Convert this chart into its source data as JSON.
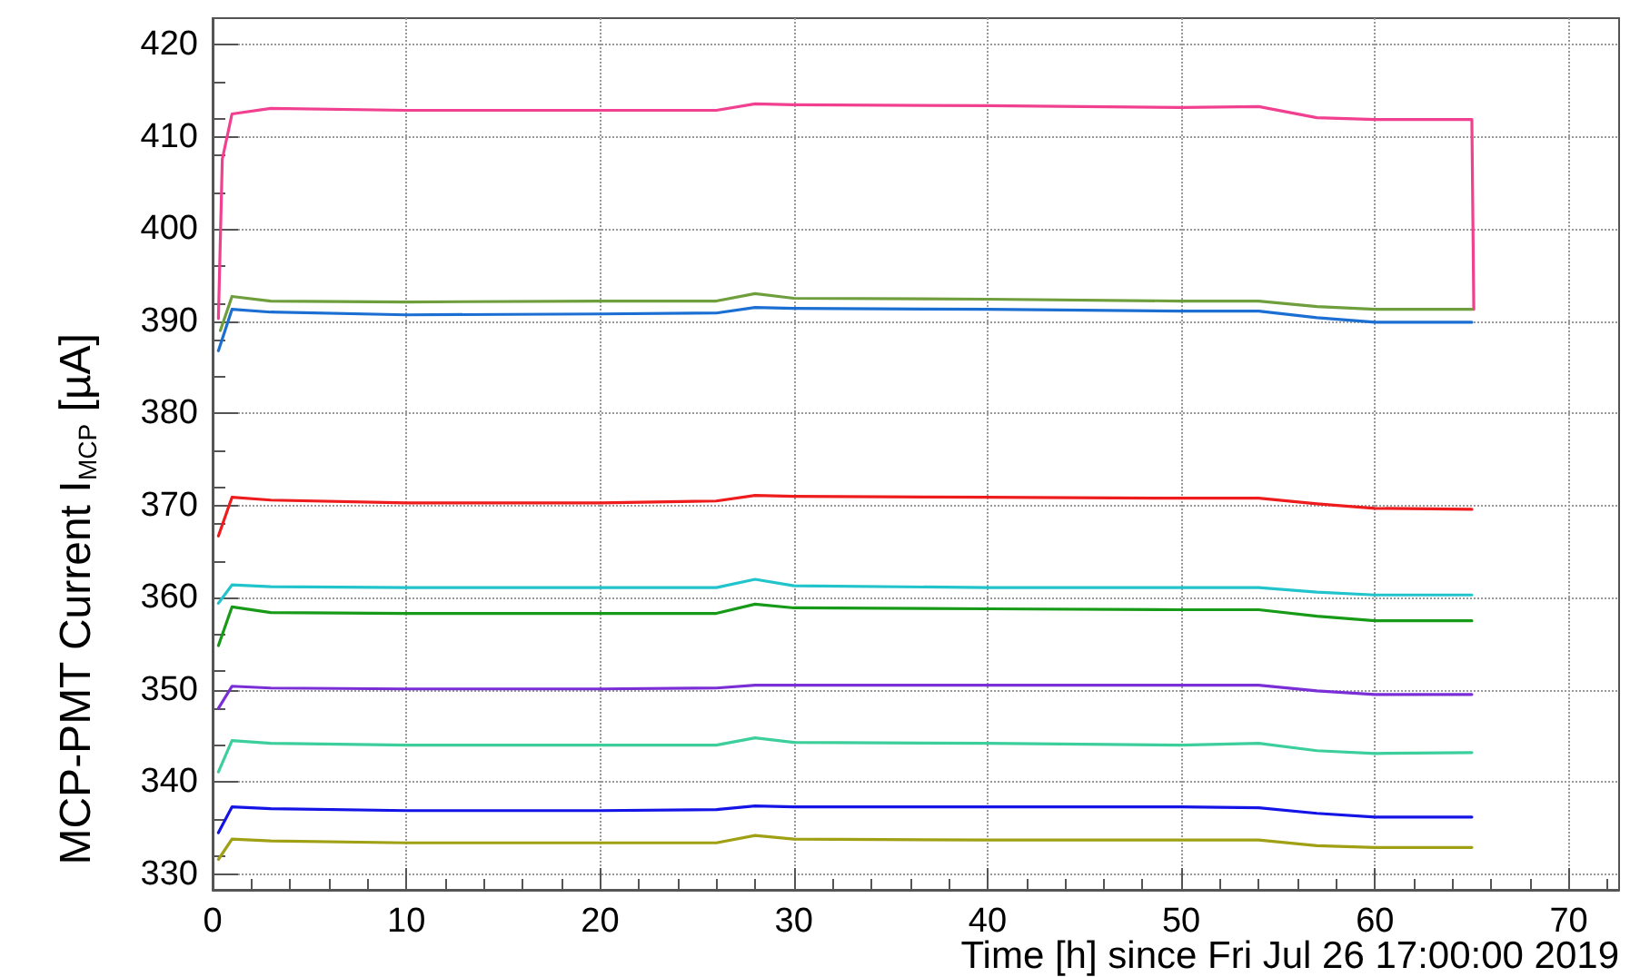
{
  "chart_data": {
    "type": "line",
    "xlabel": "Time [h] since Fri Jul 26 17:00:00 2019",
    "ylabel": "MCP-PMT Current I$_{MCP}$ [µA]",
    "xlim": [
      0,
      72.6
    ],
    "xticks": [
      0,
      10,
      20,
      30,
      40,
      50,
      60,
      70
    ],
    "ylim": [
      328.3,
      422.9
    ],
    "yticks": [
      330,
      340,
      350,
      360,
      370,
      380,
      390,
      400,
      410,
      420
    ],
    "grid": true,
    "marker": "none",
    "line_style": "solid",
    "series": [
      {
        "color": "#f0408f",
        "x": [
          0.3,
          0.5,
          1,
          3,
          10,
          20,
          26,
          28,
          30,
          40,
          50,
          54,
          57,
          60,
          65,
          65.1
        ],
        "values": [
          390.3,
          407.6,
          412.5,
          413.1,
          412.9,
          412.9,
          412.9,
          413.6,
          413.5,
          413.4,
          413.2,
          413.3,
          412.1,
          411.9,
          411.9,
          391.3
        ]
      },
      {
        "color": "#6f9e3c",
        "x": [
          0.4,
          1,
          3,
          10,
          20,
          26,
          28,
          30,
          40,
          50,
          54,
          57,
          60,
          65
        ],
        "values": [
          389.0,
          392.7,
          392.2,
          392.1,
          392.2,
          392.2,
          393.0,
          392.5,
          392.4,
          392.2,
          392.2,
          391.6,
          391.3,
          391.3
        ]
      },
      {
        "color": "#1c6fd2",
        "x": [
          0.3,
          1,
          3,
          10,
          20,
          26,
          28,
          30,
          40,
          50,
          54,
          57,
          60,
          65
        ],
        "values": [
          386.8,
          391.3,
          391.0,
          390.7,
          390.8,
          390.9,
          391.5,
          391.4,
          391.3,
          391.1,
          391.1,
          390.4,
          389.9,
          389.9
        ]
      },
      {
        "color": "#ee1c1c",
        "x": [
          0.3,
          1,
          3,
          10,
          20,
          26,
          28,
          30,
          40,
          50,
          54,
          57,
          60,
          65
        ],
        "values": [
          366.7,
          370.9,
          370.6,
          370.3,
          370.3,
          370.5,
          371.1,
          371.0,
          370.9,
          370.8,
          370.8,
          370.2,
          369.7,
          369.6
        ]
      },
      {
        "color": "#22c4cc",
        "x": [
          0.3,
          1,
          3,
          10,
          20,
          26,
          28,
          30,
          40,
          50,
          54,
          57,
          60,
          65
        ],
        "values": [
          359.4,
          361.4,
          361.2,
          361.1,
          361.1,
          361.1,
          362.0,
          361.3,
          361.1,
          361.1,
          361.1,
          360.6,
          360.3,
          360.3
        ]
      },
      {
        "color": "#179a17",
        "x": [
          0.3,
          1,
          3,
          10,
          20,
          26,
          28,
          30,
          40,
          50,
          54,
          57,
          60,
          65
        ],
        "values": [
          354.8,
          359.0,
          358.4,
          358.3,
          358.3,
          358.3,
          359.3,
          358.9,
          358.8,
          358.7,
          358.7,
          358.0,
          357.5,
          357.5
        ]
      },
      {
        "color": "#7a2fd6",
        "x": [
          0.3,
          1,
          3,
          10,
          20,
          26,
          28,
          30,
          40,
          50,
          54,
          57,
          60,
          65
        ],
        "values": [
          348.0,
          350.4,
          350.2,
          350.1,
          350.1,
          350.2,
          350.5,
          350.5,
          350.5,
          350.5,
          350.5,
          349.9,
          349.5,
          349.5
        ]
      },
      {
        "color": "#3ccf9c",
        "x": [
          0.3,
          1,
          3,
          10,
          20,
          26,
          28,
          30,
          40,
          50,
          54,
          57,
          60,
          65
        ],
        "values": [
          341.1,
          344.5,
          344.2,
          344.0,
          344.0,
          344.0,
          344.8,
          344.3,
          344.2,
          344.0,
          344.2,
          343.4,
          343.1,
          343.2
        ]
      },
      {
        "color": "#1414e6",
        "x": [
          0.3,
          1,
          3,
          10,
          20,
          26,
          28,
          30,
          40,
          50,
          54,
          57,
          60,
          65
        ],
        "values": [
          334.5,
          337.3,
          337.1,
          336.9,
          336.9,
          337.0,
          337.4,
          337.3,
          337.3,
          337.3,
          337.2,
          336.6,
          336.2,
          336.2
        ]
      },
      {
        "color": "#a0a014",
        "x": [
          0.3,
          1,
          3,
          10,
          20,
          26,
          28,
          30,
          40,
          50,
          54,
          57,
          60,
          65
        ],
        "values": [
          331.6,
          333.8,
          333.6,
          333.4,
          333.4,
          333.4,
          334.2,
          333.8,
          333.7,
          333.7,
          333.7,
          333.1,
          332.9,
          332.9
        ]
      }
    ]
  }
}
